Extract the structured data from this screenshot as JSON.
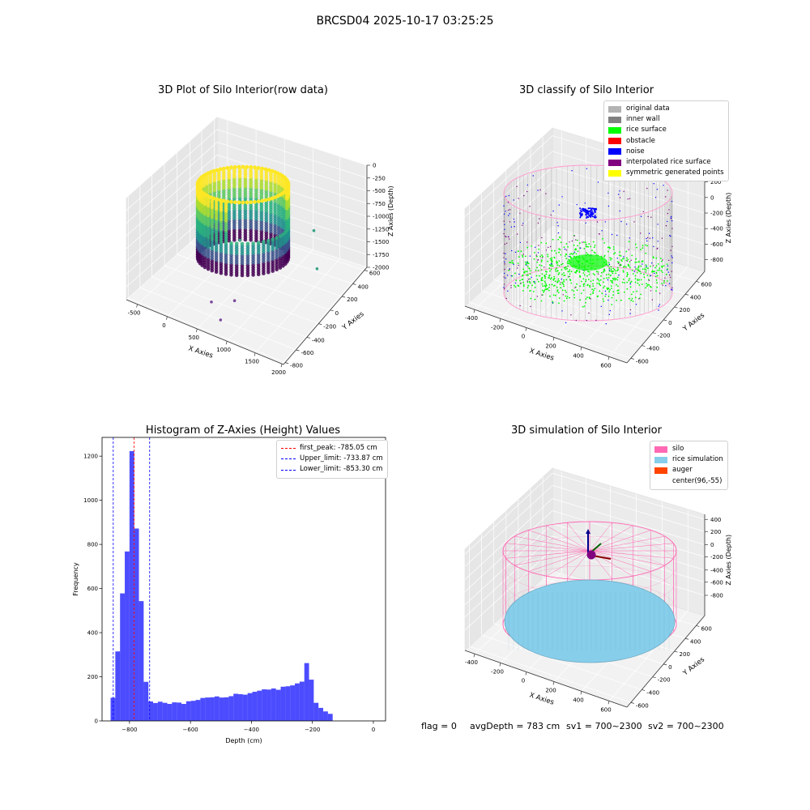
{
  "figure": {
    "suptitle": "BRCSD04 2025-10-17 03:25:25",
    "footer": {
      "flag": "flag = 0",
      "avg_depth": "avgDepth = 783 cm",
      "sv1": "sv1 = 700~2300",
      "sv2": "sv2 = 700~2300"
    }
  },
  "chart_data": [
    {
      "id": "raw",
      "type": "scatter",
      "title": "3D Plot of Silo Interior(row data)",
      "xlabel": "X Axies",
      "ylabel": "Y Axies",
      "zlabel": "Z Axies (Depth)",
      "x_ticks": [
        "-500",
        "0",
        "500",
        "1000",
        "1500",
        "2000"
      ],
      "y_ticks": [
        "-800",
        "-600",
        "-400",
        "-200",
        "0",
        "200",
        "400",
        "600"
      ],
      "z_ticks": [
        "0",
        "-250",
        "-500",
        "-750",
        "-1000",
        "-1250",
        "-1500",
        "-1750",
        "-2000"
      ],
      "xlim": [
        -600,
        2050
      ],
      "ylim": [
        -850,
        700
      ],
      "zlim": [
        -2050,
        60
      ],
      "colormap": "viridis",
      "outliers": [
        {
          "x": 1500,
          "y": 300,
          "z": -1000
        },
        {
          "x": 1650,
          "y": 200,
          "z": -1600
        },
        {
          "x": 600,
          "y": -100,
          "z": -1100
        },
        {
          "x": 800,
          "y": -400,
          "z": -1900
        },
        {
          "x": 500,
          "y": -500,
          "z": -1950
        },
        {
          "x": 800,
          "y": -650,
          "z": -2000
        }
      ]
    },
    {
      "id": "classify",
      "type": "scatter",
      "title": "3D classify of Silo Interior",
      "xlabel": "X Axies",
      "ylabel": "Y Axies",
      "zlabel": "Z Axies (Depth)",
      "x_ticks": [
        "-400",
        "-200",
        "0",
        "200",
        "400",
        "600"
      ],
      "y_ticks": [
        "-600",
        "-400",
        "-200",
        "0",
        "200",
        "400",
        "600"
      ],
      "z_ticks": [
        "200",
        "0",
        "-200",
        "-400",
        "-600",
        "-800"
      ],
      "xlim": [
        -500,
        720
      ],
      "ylim": [
        -700,
        650
      ],
      "zlim": [
        -950,
        300
      ],
      "legend": [
        {
          "label": "original data",
          "color": "#b3b3b3"
        },
        {
          "label": "inner wall",
          "color": "#808080"
        },
        {
          "label": "rice surface",
          "color": "#00ff00"
        },
        {
          "label": "obstacle",
          "color": "#ff0000"
        },
        {
          "label": "noise",
          "color": "#0000ff"
        },
        {
          "label": "interpolated rice surface",
          "color": "#800080"
        },
        {
          "label": "symmetric generated points",
          "color": "#ffff00"
        }
      ],
      "silo": {
        "cx": 96,
        "cy": -55,
        "radius": 590,
        "z_top": 0,
        "z_bottom": -880
      },
      "rice_depth": -785
    },
    {
      "id": "hist",
      "type": "bar",
      "title": "Histogram of Z-Axies (Height) Values",
      "xlabel": "Depth (cm)",
      "ylabel": "Frequency",
      "xlim": [
        -890,
        40
      ],
      "ylim": [
        0,
        1285
      ],
      "x_ticks": [
        -800,
        -600,
        -400,
        -200,
        0
      ],
      "y_ticks": [
        0,
        200,
        400,
        600,
        800,
        1000,
        1200
      ],
      "bin_width": 15.5,
      "bin_start": -862,
      "values": [
        105,
        315,
        578,
        768,
        1223,
        872,
        543,
        177,
        88,
        81,
        87,
        82,
        77,
        84,
        83,
        77,
        89,
        91,
        95,
        104,
        106,
        107,
        111,
        106,
        107,
        112,
        123,
        121,
        119,
        126,
        132,
        137,
        143,
        142,
        147,
        141,
        155,
        157,
        161,
        170,
        178,
        262,
        187,
        82,
        59,
        43,
        32
      ],
      "color": "#0000ff",
      "lines": [
        {
          "label": "first_peak: -785.05 cm",
          "x": -785.05,
          "color": "#ff0000"
        },
        {
          "label": "Upper_limit: -733.87 cm",
          "x": -733.87,
          "color": "#0000ff"
        },
        {
          "label": "Lower_limit: -853.30 cm",
          "x": -853.3,
          "color": "#0000ff"
        }
      ]
    },
    {
      "id": "sim",
      "type": "scatter",
      "title": "3D simulation of Silo Interior",
      "xlabel": "X Axies",
      "ylabel": "Y Axies",
      "zlabel": "Z Axies (Depth)",
      "x_ticks": [
        "-400",
        "-200",
        "0",
        "200",
        "400",
        "600"
      ],
      "y_ticks": [
        "-600",
        "-400",
        "-200",
        "0",
        "200",
        "400",
        "600"
      ],
      "z_ticks": [
        "400",
        "200",
        "0",
        "-200",
        "-400",
        "-600",
        "-800"
      ],
      "xlim": [
        -500,
        720
      ],
      "ylim": [
        -700,
        650
      ],
      "zlim": [
        -950,
        450
      ],
      "legend": [
        {
          "label": "silo",
          "color": "#ff69b4"
        },
        {
          "label": "rice simulation",
          "color": "#87ceeb"
        },
        {
          "label": "auger",
          "color": "#ff4500"
        },
        {
          "label": "center(96,-55)",
          "color": ""
        }
      ],
      "silo": {
        "cx": 96,
        "cy": -55,
        "radius": 590,
        "z_top": 0,
        "z_bottom": -880
      },
      "rice_depth": -783
    }
  ]
}
